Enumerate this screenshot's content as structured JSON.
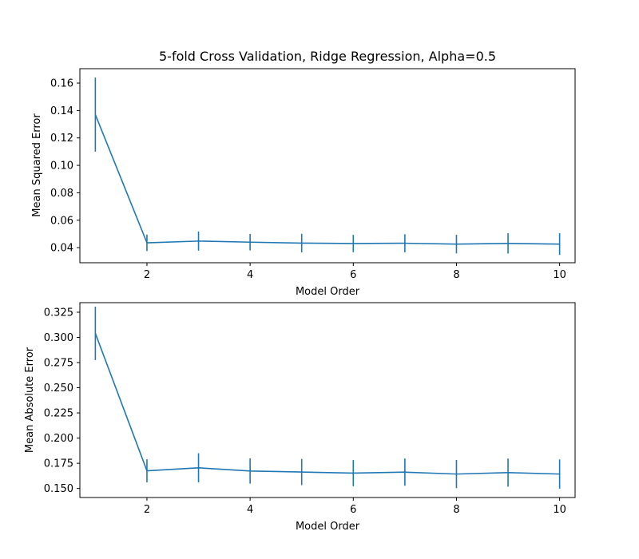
{
  "chart_data": [
    {
      "type": "line",
      "title": "5-fold Cross Validation, Ridge Regression, Alpha=0.5",
      "xlabel": "Model Order",
      "ylabel": "Mean Squared Error",
      "xlim": [
        0.7,
        10.3
      ],
      "ylim": [
        0.029,
        0.1705
      ],
      "xticks": [
        2,
        4,
        6,
        8,
        10
      ],
      "yticks": [
        0.04,
        0.06,
        0.08,
        0.1,
        0.12,
        0.14,
        0.16
      ],
      "ytick_labels": [
        "0.04",
        "0.06",
        "0.08",
        "0.10",
        "0.12",
        "0.14",
        "0.16"
      ],
      "grid": false,
      "series": [
        {
          "color": "#1f77b4",
          "x": [
            1,
            2,
            3,
            4,
            5,
            6,
            7,
            8,
            9,
            10
          ],
          "y": [
            0.137,
            0.0435,
            0.0448,
            0.044,
            0.0433,
            0.043,
            0.0432,
            0.0426,
            0.0431,
            0.0426
          ],
          "yerr": [
            0.027,
            0.006,
            0.007,
            0.006,
            0.0068,
            0.0063,
            0.0066,
            0.0068,
            0.0074,
            0.0079
          ]
        }
      ]
    },
    {
      "type": "line",
      "title": "",
      "xlabel": "Model Order",
      "ylabel": "Mean Absolute Error",
      "xlim": [
        0.7,
        10.3
      ],
      "ylim": [
        0.141,
        0.3345
      ],
      "xticks": [
        2,
        4,
        6,
        8,
        10
      ],
      "yticks": [
        0.15,
        0.175,
        0.2,
        0.225,
        0.25,
        0.275,
        0.3,
        0.325
      ],
      "ytick_labels": [
        "0.150",
        "0.175",
        "0.200",
        "0.225",
        "0.250",
        "0.275",
        "0.300",
        "0.325"
      ],
      "grid": false,
      "series": [
        {
          "color": "#1f77b4",
          "x": [
            1,
            2,
            3,
            4,
            5,
            6,
            7,
            8,
            9,
            10
          ],
          "y": [
            0.304,
            0.1675,
            0.1705,
            0.1673,
            0.1663,
            0.1652,
            0.1662,
            0.1643,
            0.1657,
            0.1643
          ],
          "yerr": [
            0.0265,
            0.0115,
            0.0145,
            0.0125,
            0.013,
            0.013,
            0.0135,
            0.014,
            0.014,
            0.0145
          ]
        }
      ]
    }
  ]
}
